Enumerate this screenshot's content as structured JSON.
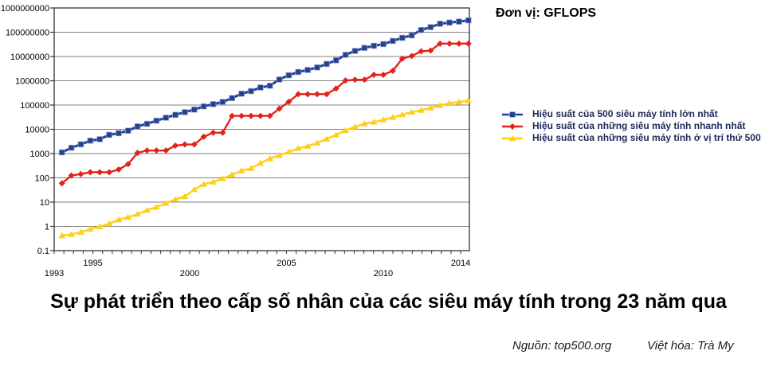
{
  "unit_label": "Đơn vị: GFLOPS",
  "title": "Sự phát triển theo cấp số nhân của các siêu máy tính trong 23 năm qua",
  "source": "Nguồn: top500.org",
  "credit": "Việt hóa: Trà My",
  "chart_data": {
    "type": "line",
    "unit": "GFLOPS",
    "y_scale": "log",
    "ylim": [
      0.1,
      1000000000
    ],
    "y_tick_labels": [
      "1000000000",
      "100000000",
      "10000000",
      "1000000",
      "100000",
      "10000",
      "1000",
      "100",
      "10",
      "1",
      "0.1"
    ],
    "x_range": [
      1993,
      2014.45
    ],
    "x_tick_labels": [
      "1993",
      "1995",
      "2000",
      "2005",
      "2010",
      "2014"
    ],
    "x_first": 1993.4,
    "x_last": 2014.4,
    "samples_per_year": 2,
    "sample_interval": "6 months (Jun & Nov TOP500 lists, 1993-2014)",
    "grid": true,
    "legend_position": "right",
    "series": [
      {
        "name": "Hiệu suất của 500 siêu máy tính lớn nhất",
        "color": "#24408f",
        "marker": "square",
        "values": [
          1120,
          1730,
          2400,
          3400,
          3900,
          5900,
          6900,
          8800,
          13200,
          16800,
          22600,
          30000,
          39400,
          50900,
          64900,
          88000,
          108800,
          134400,
          193000,
          293000,
          375000,
          528000,
          624000,
          1127000,
          1690000,
          2300000,
          2790000,
          3540000,
          4920000,
          6970000,
          11700000,
          16950000,
          22600000,
          27600000,
          32400000,
          43700000,
          58700000,
          74200000,
          123400000,
          162000000,
          223000000,
          250000000,
          274000000,
          309000000
        ]
      },
      {
        "name": "Hiệu suất của những siêu máy tính nhanh nhất",
        "color": "#e2231a",
        "marker": "diamond",
        "values": [
          59.7,
          124,
          143.4,
          170,
          170,
          170,
          220.4,
          368.2,
          1068,
          1338,
          1338,
          1338,
          2121,
          2379,
          2379,
          4938,
          7226,
          7226,
          35860,
          35860,
          35860,
          35860,
          35860,
          70720,
          136800,
          280600,
          280600,
          280600,
          280600,
          478200,
          1026000,
          1105000,
          1105000,
          1759000,
          1759000,
          2566000,
          8162000,
          10510000,
          16324750,
          17590000,
          33862700,
          33862700,
          33862700,
          33862700
        ]
      },
      {
        "name": "Hiệu suất của những siêu máy tính ở vị trí thứ 500",
        "color": "#fdd017",
        "marker": "triangle",
        "values": [
          0.42,
          0.47,
          0.58,
          0.77,
          0.99,
          1.29,
          1.89,
          2.39,
          3.21,
          4.62,
          6.21,
          9.01,
          13,
          17.1,
          33.1,
          55.1,
          67.8,
          94.3,
          134.3,
          195.8,
          245.1,
          403.4,
          624,
          850.6,
          1166,
          1646,
          2026,
          2737,
          4005,
          5930,
          9000,
          12640,
          17100,
          20050,
          24670,
          31100,
          40190,
          50900,
          60800,
          76450,
          96600,
          117800,
          133700,
          153400
        ]
      }
    ]
  }
}
